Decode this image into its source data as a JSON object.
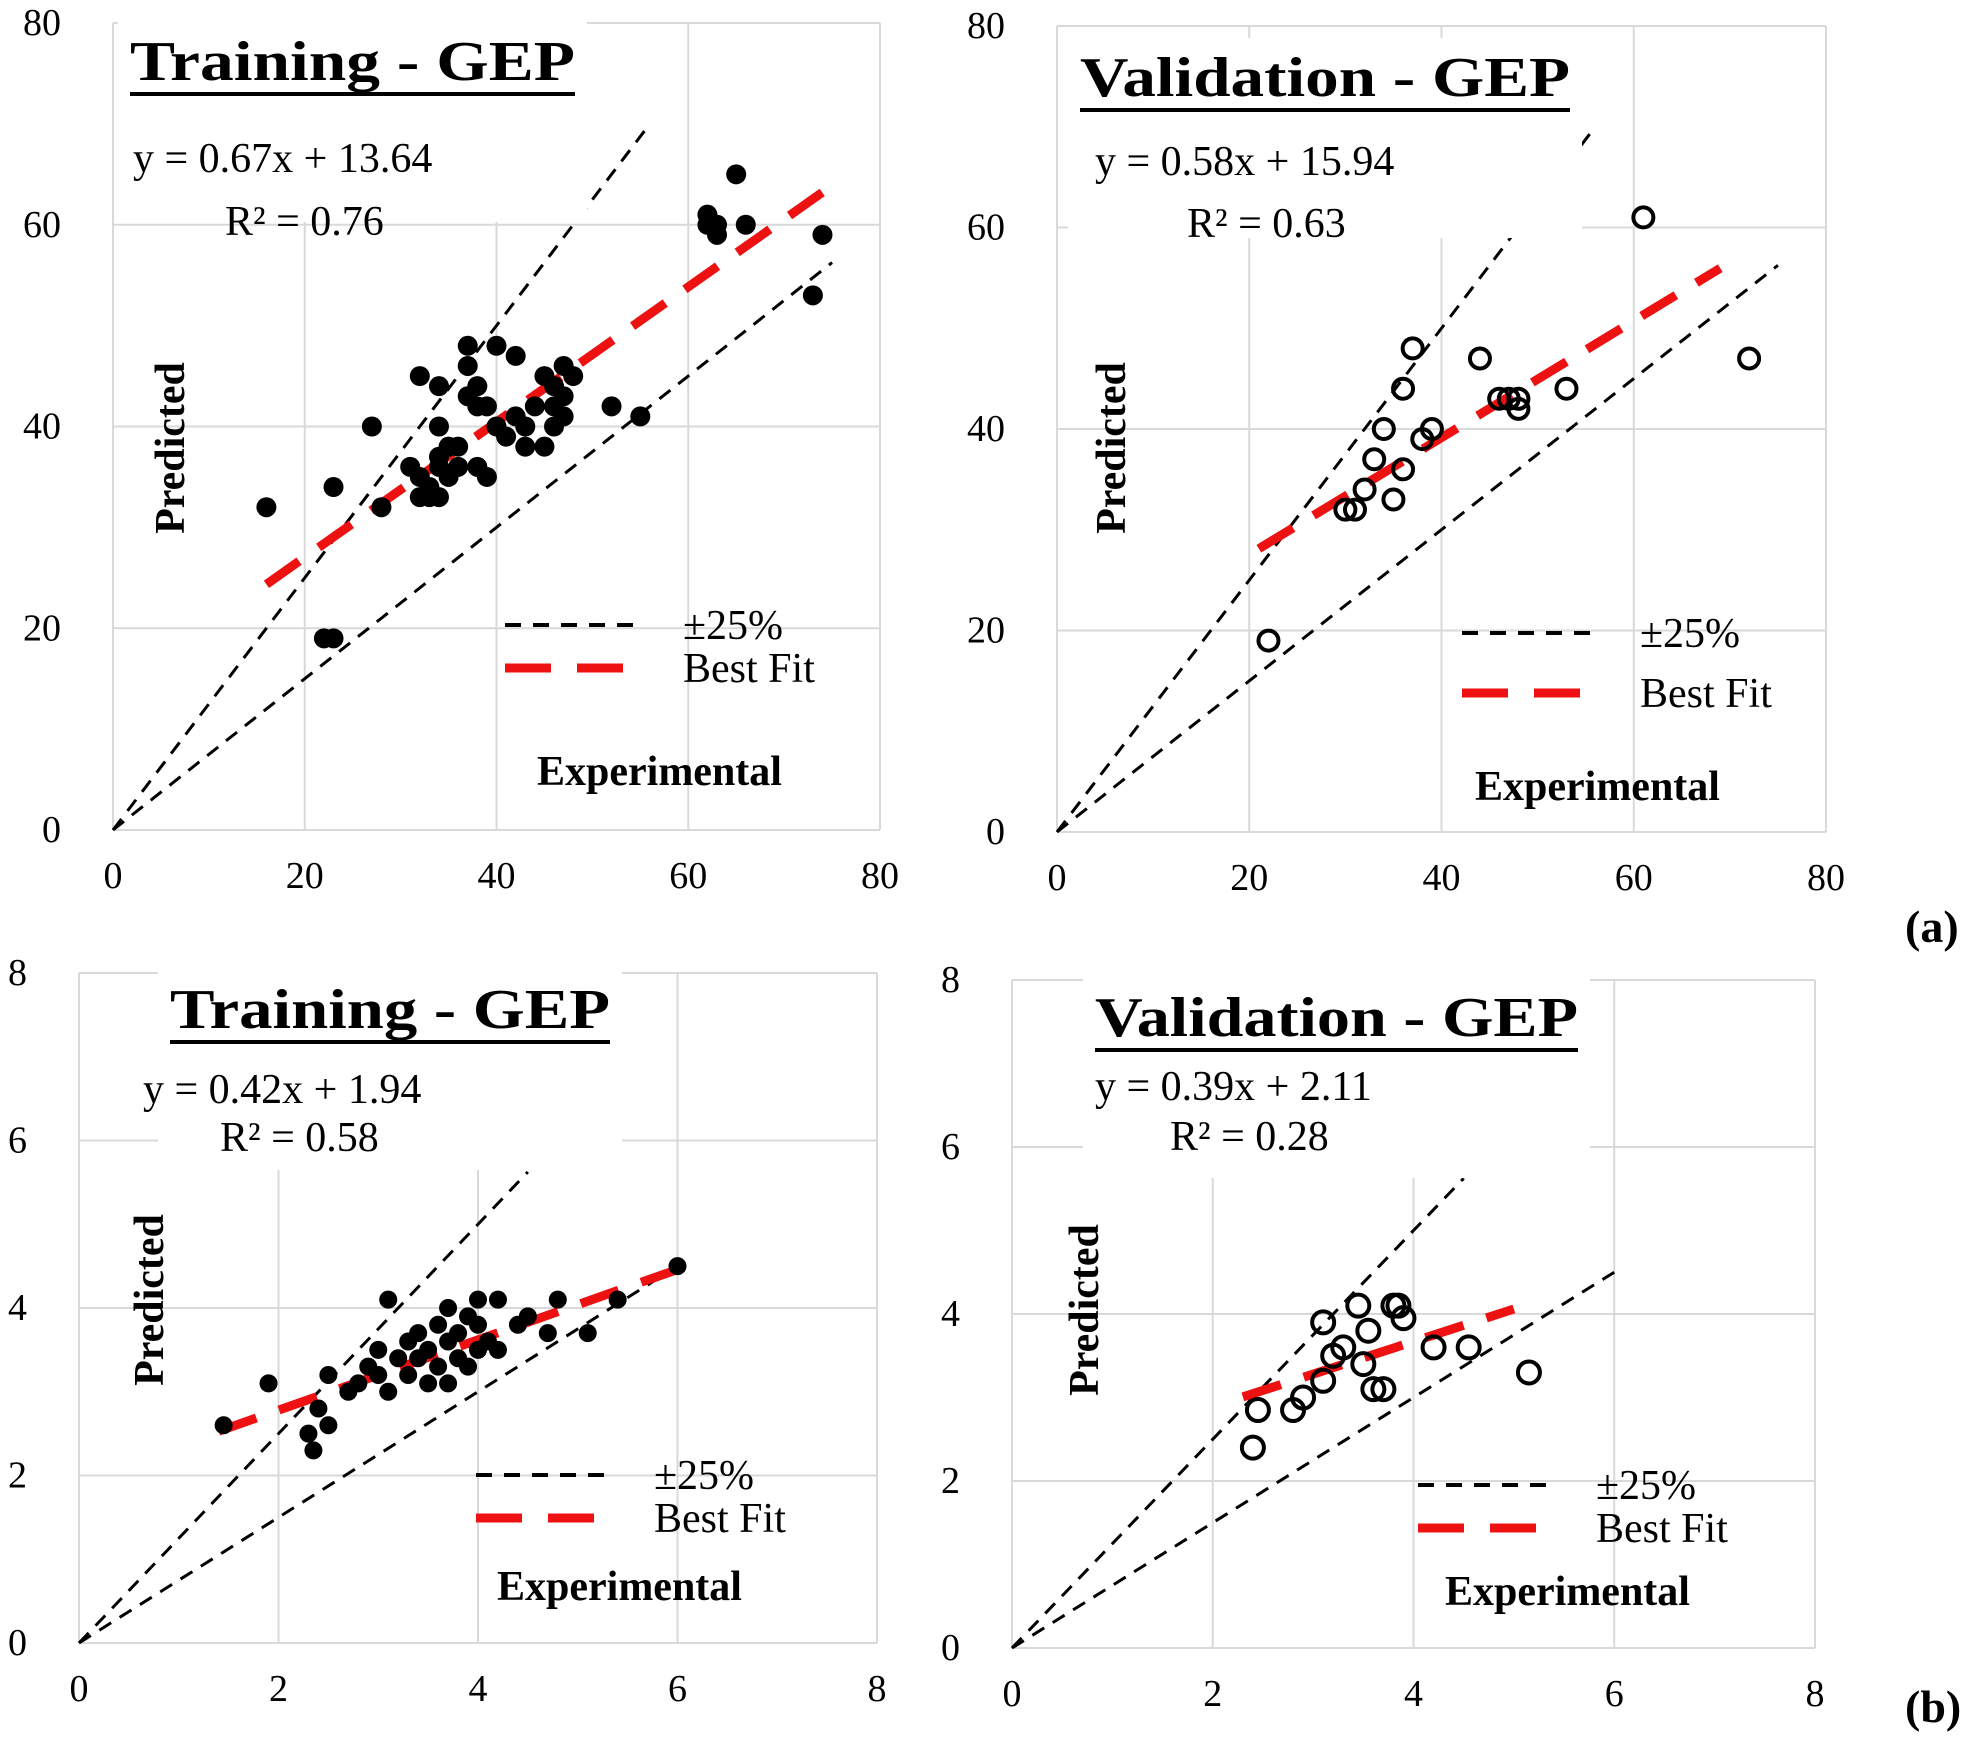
{
  "figure": {
    "panel_labels": [
      "(a)",
      "(b)"
    ]
  },
  "chart_data": [
    {
      "type": "scatter",
      "title": "Training - GEP",
      "equation": "y = 0.67x + 13.64",
      "r2": "R² = 0.76",
      "xlabel": "Experimental",
      "ylabel": "Predicted",
      "xlim": [
        0,
        80
      ],
      "ylim": [
        0,
        80
      ],
      "xticks": [
        "0",
        "20",
        "40",
        "60",
        "80"
      ],
      "yticks": [
        "0",
        "20",
        "40",
        "60",
        "80"
      ],
      "marker": "filled",
      "legend": [
        "±25%",
        "Best Fit"
      ],
      "fit": {
        "slope": 0.67,
        "intercept": 13.64,
        "x_range": [
          16,
          74
        ]
      },
      "band": {
        "upper_factor": 1.25,
        "lower_factor": 0.75,
        "upper_x_max": 56,
        "lower_x_max": 75
      },
      "points": [
        [
          16,
          32
        ],
        [
          22,
          19
        ],
        [
          23,
          19
        ],
        [
          23,
          34
        ],
        [
          27,
          40
        ],
        [
          28,
          32
        ],
        [
          31,
          36
        ],
        [
          32,
          33
        ],
        [
          32,
          35
        ],
        [
          32,
          45
        ],
        [
          33,
          33
        ],
        [
          33,
          34
        ],
        [
          34,
          33
        ],
        [
          34,
          36
        ],
        [
          34,
          37
        ],
        [
          34,
          40
        ],
        [
          34,
          44
        ],
        [
          35,
          35
        ],
        [
          35,
          38
        ],
        [
          36,
          36
        ],
        [
          36,
          38
        ],
        [
          37,
          46
        ],
        [
          37,
          48
        ],
        [
          37,
          43
        ],
        [
          38,
          42
        ],
        [
          38,
          44
        ],
        [
          38,
          36
        ],
        [
          39,
          42
        ],
        [
          39,
          35
        ],
        [
          40,
          40
        ],
        [
          40,
          48
        ],
        [
          41,
          39
        ],
        [
          42,
          47
        ],
        [
          42,
          41
        ],
        [
          43,
          40
        ],
        [
          43,
          38
        ],
        [
          44,
          42
        ],
        [
          45,
          38
        ],
        [
          45,
          45
        ],
        [
          46,
          40
        ],
        [
          46,
          42
        ],
        [
          46,
          44
        ],
        [
          47,
          41
        ],
        [
          47,
          43
        ],
        [
          47,
          46
        ],
        [
          48,
          45
        ],
        [
          52,
          42
        ],
        [
          55,
          41
        ],
        [
          62,
          61
        ],
        [
          62,
          60
        ],
        [
          63,
          60
        ],
        [
          63,
          59
        ],
        [
          65,
          65
        ],
        [
          66,
          60
        ],
        [
          73,
          53
        ],
        [
          74,
          59
        ]
      ]
    },
    {
      "type": "scatter",
      "title": "Validation - GEP",
      "equation": "y = 0.58x + 15.94",
      "r2": "R² = 0.63",
      "xlabel": "Experimental",
      "ylabel": "Predicted",
      "xlim": [
        0,
        80
      ],
      "ylim": [
        0,
        80
      ],
      "xticks": [
        "0",
        "20",
        "40",
        "60",
        "80"
      ],
      "yticks": [
        "0",
        "20",
        "40",
        "60",
        "80"
      ],
      "marker": "hollow",
      "legend": [
        "±25%",
        "Best Fit"
      ],
      "fit": {
        "slope": 0.58,
        "intercept": 15.94,
        "x_range": [
          21,
          69
        ]
      },
      "band": {
        "upper_factor": 1.25,
        "lower_factor": 0.75,
        "upper_x_max": 56,
        "lower_x_max": 75
      },
      "points": [
        [
          22,
          19
        ],
        [
          30,
          32
        ],
        [
          31,
          32
        ],
        [
          32,
          34
        ],
        [
          33,
          37
        ],
        [
          34,
          40
        ],
        [
          35,
          33
        ],
        [
          36,
          44
        ],
        [
          36,
          36
        ],
        [
          37,
          48
        ],
        [
          38,
          39
        ],
        [
          39,
          40
        ],
        [
          44,
          47
        ],
        [
          46,
          43
        ],
        [
          47,
          43
        ],
        [
          48,
          42
        ],
        [
          48,
          43
        ],
        [
          53,
          44
        ],
        [
          61,
          61
        ],
        [
          72,
          47
        ]
      ]
    },
    {
      "type": "scatter",
      "title": "Training - GEP",
      "equation": "y = 0.42x + 1.94",
      "r2": "R² = 0.58",
      "xlabel": "Experimental",
      "ylabel": "Predicted",
      "xlim": [
        0,
        8
      ],
      "ylim": [
        0,
        8
      ],
      "xticks": [
        "0",
        "2",
        "4",
        "6",
        "8"
      ],
      "yticks": [
        "0",
        "2",
        "4",
        "6",
        "8"
      ],
      "marker": "filled",
      "legend": [
        "±25%",
        "Best Fit"
      ],
      "fit": {
        "slope": 0.42,
        "intercept": 1.94,
        "x_range": [
          1.4,
          6.0
        ]
      },
      "band": {
        "upper_factor": 1.25,
        "lower_factor": 0.75,
        "upper_x_max": 4.5,
        "lower_x_max": 6.0
      },
      "points": [
        [
          1.45,
          2.6
        ],
        [
          1.9,
          3.1
        ],
        [
          2.3,
          2.5
        ],
        [
          2.35,
          2.3
        ],
        [
          2.4,
          2.8
        ],
        [
          2.5,
          2.6
        ],
        [
          2.5,
          3.2
        ],
        [
          2.7,
          3.0
        ],
        [
          2.8,
          3.1
        ],
        [
          2.9,
          3.3
        ],
        [
          3.0,
          3.5
        ],
        [
          3.0,
          3.2
        ],
        [
          3.1,
          4.1
        ],
        [
          3.1,
          3.0
        ],
        [
          3.2,
          3.4
        ],
        [
          3.3,
          3.6
        ],
        [
          3.3,
          3.2
        ],
        [
          3.4,
          3.7
        ],
        [
          3.4,
          3.4
        ],
        [
          3.5,
          3.5
        ],
        [
          3.5,
          3.1
        ],
        [
          3.6,
          3.3
        ],
        [
          3.6,
          3.8
        ],
        [
          3.7,
          3.6
        ],
        [
          3.7,
          4.0
        ],
        [
          3.7,
          3.1
        ],
        [
          3.8,
          3.4
        ],
        [
          3.8,
          3.7
        ],
        [
          3.9,
          3.9
        ],
        [
          3.9,
          3.3
        ],
        [
          4.0,
          4.1
        ],
        [
          4.0,
          3.5
        ],
        [
          4.0,
          3.8
        ],
        [
          4.1,
          3.6
        ],
        [
          4.2,
          4.1
        ],
        [
          4.2,
          3.5
        ],
        [
          4.4,
          3.8
        ],
        [
          4.5,
          3.9
        ],
        [
          4.7,
          3.7
        ],
        [
          4.8,
          4.1
        ],
        [
          5.1,
          3.7
        ],
        [
          5.4,
          4.1
        ],
        [
          6.0,
          4.5
        ]
      ]
    },
    {
      "type": "scatter",
      "title": "Validation - GEP",
      "equation": "y = 0.39x + 2.11",
      "r2": "R² = 0.28",
      "xlabel": "Experimental",
      "ylabel": "Predicted",
      "xlim": [
        0,
        8
      ],
      "ylim": [
        0,
        8
      ],
      "xticks": [
        "0",
        "2",
        "4",
        "6",
        "8"
      ],
      "yticks": [
        "0",
        "2",
        "4",
        "6",
        "8"
      ],
      "marker": "hollow",
      "legend": [
        "±25%",
        "Best Fit"
      ],
      "fit": {
        "slope": 0.39,
        "intercept": 2.11,
        "x_range": [
          2.3,
          5.0
        ]
      },
      "band": {
        "upper_factor": 1.25,
        "lower_factor": 0.75,
        "upper_x_max": 4.5,
        "lower_x_max": 6.0
      },
      "points": [
        [
          2.4,
          2.4
        ],
        [
          2.45,
          2.85
        ],
        [
          2.8,
          2.85
        ],
        [
          2.9,
          3.0
        ],
        [
          3.1,
          3.2
        ],
        [
          3.1,
          3.9
        ],
        [
          3.2,
          3.5
        ],
        [
          3.3,
          3.6
        ],
        [
          3.45,
          4.1
        ],
        [
          3.5,
          3.4
        ],
        [
          3.55,
          3.8
        ],
        [
          3.6,
          3.1
        ],
        [
          3.7,
          3.1
        ],
        [
          3.8,
          4.1
        ],
        [
          3.85,
          4.1
        ],
        [
          3.9,
          3.95
        ],
        [
          4.2,
          3.6
        ],
        [
          4.55,
          3.6
        ],
        [
          5.15,
          3.3
        ]
      ]
    }
  ]
}
